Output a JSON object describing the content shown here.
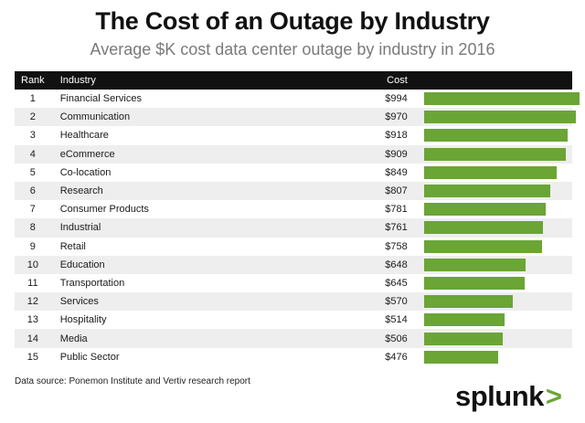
{
  "header": {
    "title": "The Cost of an Outage by Industry",
    "subtitle": "Average $K cost data center outage by industry in 2016"
  },
  "table": {
    "columns": [
      "Rank",
      "Industry",
      "Cost"
    ],
    "rows": [
      {
        "rank": "1",
        "industry": "Financial Services",
        "cost": "$994"
      },
      {
        "rank": "2",
        "industry": "Communication",
        "cost": "$970"
      },
      {
        "rank": "3",
        "industry": "Healthcare",
        "cost": "$918"
      },
      {
        "rank": "4",
        "industry": "eCommerce",
        "cost": "$909"
      },
      {
        "rank": "5",
        "industry": "Co-location",
        "cost": "$849"
      },
      {
        "rank": "6",
        "industry": "Research",
        "cost": "$807"
      },
      {
        "rank": "7",
        "industry": "Consumer Products",
        "cost": "$781"
      },
      {
        "rank": "8",
        "industry": "Industrial",
        "cost": "$761"
      },
      {
        "rank": "9",
        "industry": "Retail",
        "cost": "$758"
      },
      {
        "rank": "10",
        "industry": "Education",
        "cost": "$648"
      },
      {
        "rank": "11",
        "industry": "Transportation",
        "cost": "$645"
      },
      {
        "rank": "12",
        "industry": "Services",
        "cost": "$570"
      },
      {
        "rank": "13",
        "industry": "Hospitality",
        "cost": "$514"
      },
      {
        "rank": "14",
        "industry": "Media",
        "cost": "$506"
      },
      {
        "rank": "15",
        "industry": "Public Sector",
        "cost": "$476"
      }
    ]
  },
  "chart_data": {
    "type": "bar",
    "title": "The Cost of an Outage by Industry",
    "subtitle": "Average $K cost data center outage by industry in 2016",
    "categories": [
      "Financial Services",
      "Communication",
      "Healthcare",
      "eCommerce",
      "Co-location",
      "Research",
      "Consumer Products",
      "Industrial",
      "Retail",
      "Education",
      "Transportation",
      "Services",
      "Hospitality",
      "Media",
      "Public Sector"
    ],
    "values": [
      994,
      970,
      918,
      909,
      849,
      807,
      781,
      761,
      758,
      648,
      645,
      570,
      514,
      506,
      476
    ],
    "orientation": "horizontal",
    "xlim": [
      0,
      994
    ],
    "grid": false,
    "bar_color": "#6aa536"
  },
  "footer": {
    "source": "Data source: Ponemon Institute and Vertiv research report",
    "logo_text": "splunk",
    "logo_mark": ">"
  },
  "colors": {
    "header_bg": "#111111",
    "row_alt": "#eeeeee",
    "bar": "#6aa536"
  }
}
